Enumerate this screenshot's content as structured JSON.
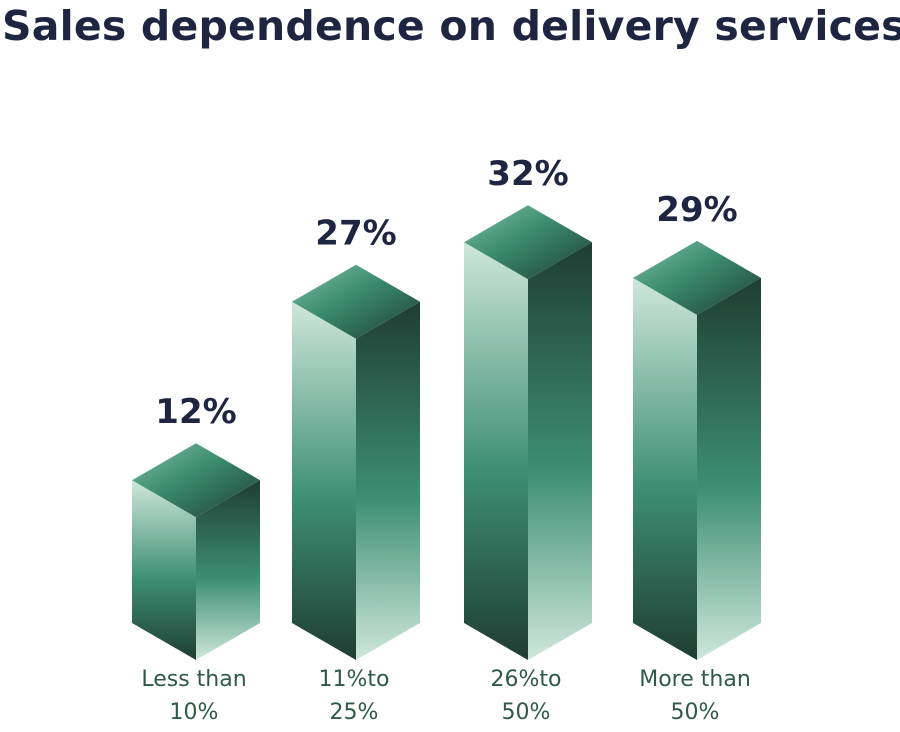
{
  "chart_data": {
    "type": "bar",
    "title": "Sales dependence on delivery services",
    "categories": [
      [
        "Less than",
        "10%"
      ],
      [
        "11%to",
        "25%"
      ],
      [
        "26%to",
        "50%"
      ],
      [
        "More than",
        "50%"
      ]
    ],
    "values": [
      12,
      27,
      32,
      29
    ],
    "value_labels": [
      "12%",
      "27%",
      "32%",
      "29%"
    ],
    "colors": {
      "title": "#1d2540",
      "value_label": "#1d2540",
      "category_label": "#2f5a44",
      "bar_dark": "#1f3d32",
      "bar_mid": "#3d8f73",
      "bar_light": "#cfe7dd"
    }
  }
}
